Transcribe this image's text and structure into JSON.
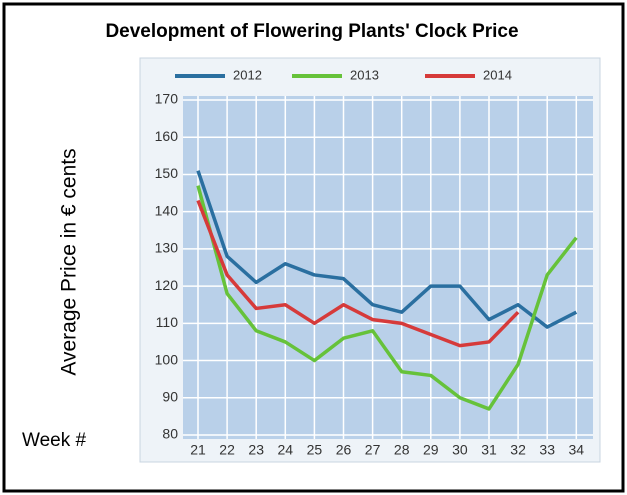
{
  "chart_data": {
    "type": "line",
    "title": "Development of Flowering Plants' Clock Price",
    "y_label": "Average Price in € cents",
    "x_label": "Week #",
    "categories": [
      "21",
      "22",
      "23",
      "24",
      "25",
      "26",
      "27",
      "28",
      "29",
      "30",
      "31",
      "32",
      "33",
      "34"
    ],
    "series": [
      {
        "name": "2012",
        "color": "#2a6fa0",
        "values": [
          151,
          128,
          121,
          126,
          123,
          122,
          115,
          113,
          120,
          120,
          111,
          115,
          109,
          113
        ]
      },
      {
        "name": "2013",
        "color": "#66c23a",
        "values": [
          147,
          118,
          108,
          105,
          100,
          106,
          108,
          97,
          96,
          90,
          87,
          99,
          123,
          133
        ]
      },
      {
        "name": "2014",
        "color": "#d63a3a",
        "values": [
          143,
          123,
          114,
          115,
          110,
          115,
          111,
          110,
          107,
          104,
          105,
          113,
          null,
          null
        ]
      }
    ],
    "ylim": [
      80,
      170
    ],
    "yticks": [
      80,
      90,
      100,
      110,
      120,
      130,
      140,
      150,
      160,
      170
    ],
    "grid": true
  }
}
